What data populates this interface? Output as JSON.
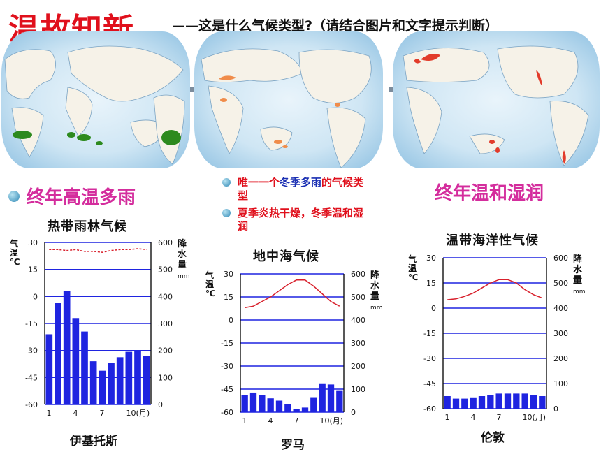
{
  "header": {
    "title": "温故知新",
    "subtitle_dash": "——",
    "subtitle": "这是什么气候类型?（请结合图片和文字提示判断）"
  },
  "labels": {
    "tropical": "终年高温多雨",
    "oceanic": "终年温和湿润"
  },
  "bullets": [
    {
      "text_before": "唯一一个",
      "highlight": "冬季多雨",
      "text_after": "的气候类型"
    },
    {
      "text_before": "夏季炎热干燥，冬季温和湿润",
      "highlight": "",
      "text_after": ""
    }
  ],
  "colors": {
    "title": "#e0101c",
    "label": "#d42d9d",
    "bullet_text": "#e0101c",
    "bar": "#1f24e0",
    "temp_line": "#d8202c",
    "map_rainforest": "#2d8a1e",
    "map_mediterranean": "#f08c4a",
    "map_oceanic": "#e23b2a"
  },
  "chart_data": [
    {
      "type": "bar",
      "title": "热带雨林气候",
      "city": "伊基托斯",
      "temp_axis_label": "气温℃",
      "precip_axis_label": "降水量",
      "precip_unit": "mm",
      "temp_ticks": [
        "30",
        "15",
        "0",
        "-15",
        "-30",
        "-45",
        "-60"
      ],
      "precip_ticks": [
        "600",
        "500",
        "400",
        "300",
        "200",
        "100",
        "0"
      ],
      "month_ticks": [
        "1",
        "4",
        "7",
        "10(月)"
      ],
      "temp_range": [
        -60,
        30
      ],
      "precip_range": [
        0,
        600
      ],
      "temperature": [
        26,
        26,
        25.5,
        26,
        25,
        25,
        24.5,
        25.5,
        26,
        26,
        26.5,
        26
      ],
      "precipitation": [
        260,
        375,
        420,
        320,
        270,
        160,
        125,
        155,
        175,
        195,
        200,
        180
      ]
    },
    {
      "type": "bar",
      "title": "地中海气候",
      "city": "罗马",
      "temp_axis_label": "气温℃",
      "precip_axis_label": "降水量",
      "precip_unit": "mm",
      "temp_ticks": [
        "30",
        "15",
        "0",
        "-15",
        "-30",
        "-45",
        "-60"
      ],
      "precip_ticks": [
        "600",
        "500",
        "400",
        "300",
        "200",
        "100",
        "0"
      ],
      "month_ticks": [
        "1",
        "4",
        "7",
        "10(月)"
      ],
      "temp_range": [
        -60,
        30
      ],
      "precip_range": [
        0,
        600
      ],
      "temperature": [
        8,
        9,
        12,
        15,
        19,
        23,
        26,
        26,
        22,
        17,
        12,
        9
      ],
      "precipitation": [
        75,
        85,
        75,
        60,
        50,
        35,
        15,
        20,
        65,
        125,
        120,
        95
      ]
    },
    {
      "type": "bar",
      "title": "温带海洋性气候",
      "city": "伦敦",
      "temp_axis_label": "气温℃",
      "precip_axis_label": "降水量",
      "precip_unit": "mm",
      "temp_ticks": [
        "30",
        "15",
        "0",
        "-15",
        "-30",
        "-45",
        "-60"
      ],
      "precip_ticks": [
        "600",
        "500",
        "400",
        "300",
        "200",
        "100",
        "0"
      ],
      "month_ticks": [
        "1",
        "4",
        "7",
        "10(月)"
      ],
      "temp_range": [
        -60,
        30
      ],
      "precip_range": [
        0,
        600
      ],
      "temperature": [
        5,
        5.5,
        7,
        9,
        12,
        15,
        17,
        17,
        15,
        11,
        8,
        6
      ],
      "precipitation": [
        50,
        40,
        40,
        45,
        50,
        55,
        60,
        60,
        60,
        60,
        55,
        50
      ]
    }
  ]
}
